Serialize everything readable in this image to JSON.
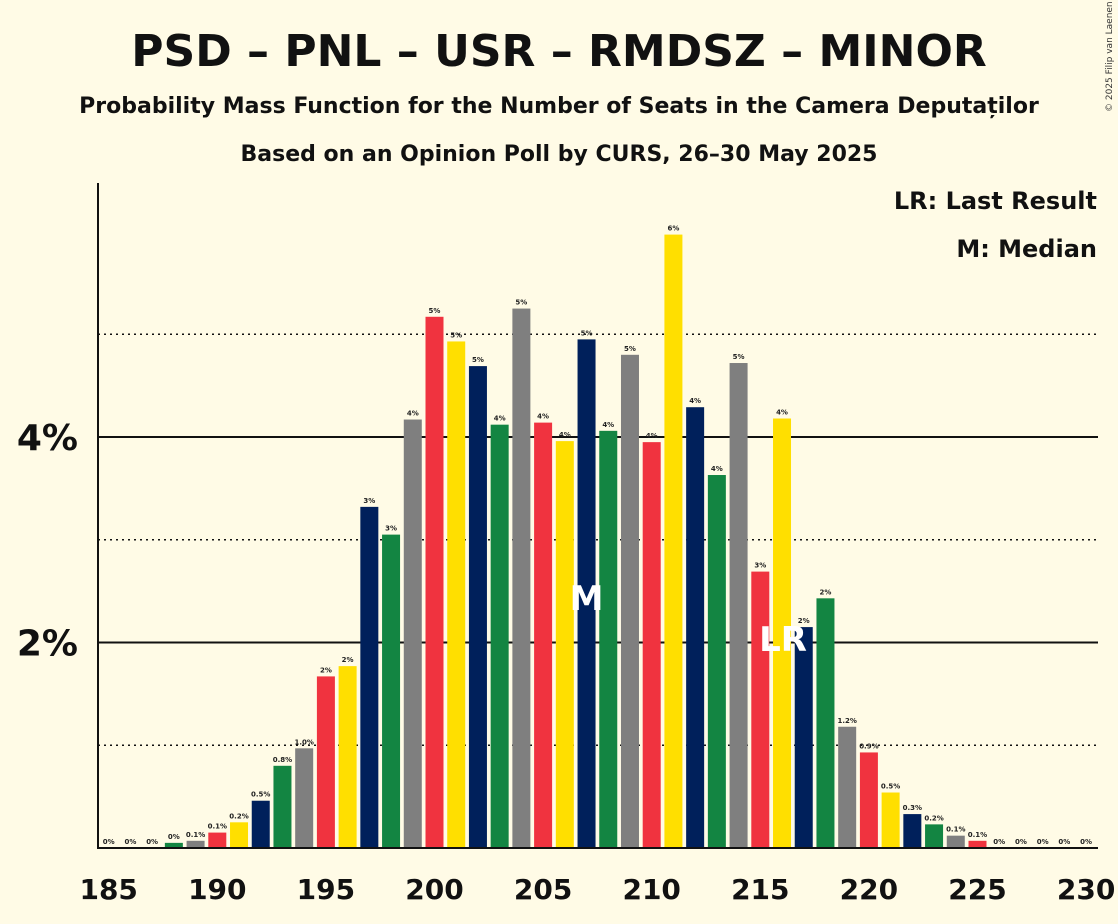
{
  "title": "PSD – PNL – USR – RMDSZ – MINOR",
  "subtitle": "Probability Mass Function for the Number of Seats in the Camera Deputaților",
  "subtitle2": "Based on an Opinion Poll by CURS, 26–30 May 2025",
  "legend": {
    "lr": "LR: Last Result",
    "median": "M: Median"
  },
  "copyright": "© 2025 Filip van Laenen",
  "colors": {
    "background": "#fffbe6",
    "PSD": "#f0333f",
    "PNL": "#ffdf00",
    "USR": "#00205b",
    "RMDSZ": "#138542",
    "MINOR": "#7f7f7f"
  },
  "chart_data": {
    "type": "bar",
    "x": [
      185,
      186,
      187,
      188,
      189,
      190,
      191,
      192,
      193,
      194,
      195,
      196,
      197,
      198,
      199,
      200,
      201,
      202,
      203,
      204,
      205,
      206,
      207,
      208,
      209,
      210,
      211,
      212,
      213,
      214,
      215,
      216,
      217,
      218,
      219,
      220,
      221,
      222,
      223,
      224,
      225,
      226,
      227,
      228,
      229,
      230
    ],
    "values": [
      0,
      0,
      0,
      0.05,
      0.07,
      0.15,
      0.25,
      0.46,
      0.8,
      0.97,
      1.67,
      1.77,
      3.32,
      3.05,
      4.17,
      5.17,
      4.93,
      4.69,
      4.12,
      5.25,
      4.14,
      3.96,
      4.95,
      4.06,
      4.8,
      3.95,
      5.97,
      4.29,
      3.63,
      4.72,
      2.69,
      4.18,
      2.15,
      2.43,
      1.18,
      0.93,
      0.54,
      0.33,
      0.23,
      0.12,
      0.07,
      0,
      0,
      0,
      0,
      0
    ],
    "labels": [
      "0%",
      "0%",
      "0%",
      "0%",
      "0.1%",
      "0.1%",
      "0.2%",
      "0.5%",
      "0.8%",
      "1.0%",
      "2%",
      "2%",
      "3%",
      "3%",
      "4%",
      "5%",
      "5%",
      "5%",
      "4%",
      "5%",
      "4%",
      "4%",
      "5%",
      "4%",
      "5%",
      "4%",
      "6%",
      "4%",
      "4%",
      "5%",
      "3%",
      "4%",
      "2%",
      "2%",
      "1.2%",
      "0.9%",
      "0.5%",
      "0.3%",
      "0.2%",
      "0.1%",
      "0.1%",
      "0%",
      "0%",
      "0%",
      "0%",
      "0%"
    ],
    "bar_colors": [
      "#00205b",
      "#138542",
      "#7f7f7f",
      "#138542",
      "#7f7f7f",
      "#f0333f",
      "#ffdf00",
      "#00205b",
      "#138542",
      "#7f7f7f",
      "#f0333f",
      "#ffdf00",
      "#00205b",
      "#138542",
      "#7f7f7f",
      "#f0333f",
      "#ffdf00",
      "#00205b",
      "#138542",
      "#7f7f7f",
      "#f0333f",
      "#ffdf00",
      "#00205b",
      "#138542",
      "#7f7f7f",
      "#f0333f",
      "#ffdf00",
      "#00205b",
      "#138542",
      "#7f7f7f",
      "#f0333f",
      "#ffdf00",
      "#00205b",
      "#138542",
      "#7f7f7f",
      "#f0333f",
      "#ffdf00",
      "#00205b",
      "#138542",
      "#7f7f7f",
      "#f0333f",
      "#ffdf00",
      "#00205b",
      "#138542",
      "#7f7f7f",
      "#f0333f"
    ],
    "xticks": [
      "185",
      "190",
      "195",
      "200",
      "205",
      "210",
      "215",
      "220",
      "225",
      "230"
    ],
    "yticks": [
      "2%",
      "4%"
    ],
    "ylim": [
      0,
      6.5
    ],
    "median": {
      "seat": 207,
      "label": "M"
    },
    "last_result": {
      "seat": 216,
      "label": "LR"
    },
    "grid": "solid at 2% and 4%, dotted at 1%, 3%, 5%"
  }
}
